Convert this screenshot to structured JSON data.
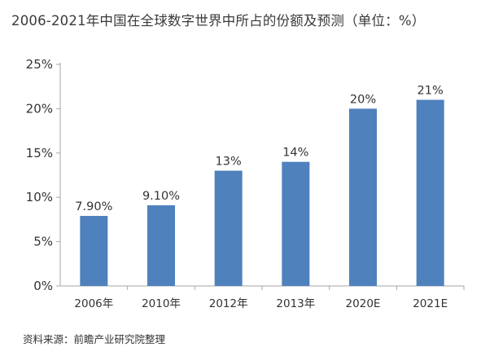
{
  "title": "2006-2021年中国在全球数字世界中所占的份额及预测（单位：%）",
  "source": "资料来源：前瞻产业研究院整理",
  "colors": {
    "bar": "#4f81bd",
    "axis": "#a6a6a6",
    "text": "#333333"
  },
  "chart_data": {
    "type": "bar",
    "categories": [
      "2006年",
      "2010年",
      "2012年",
      "2013年",
      "2020E",
      "2021E"
    ],
    "values": [
      7.9,
      9.1,
      13,
      14,
      20,
      21
    ],
    "data_labels": [
      "7.90%",
      "9.10%",
      "13%",
      "14%",
      "20%",
      "21%"
    ],
    "y_ticks": [
      0,
      5,
      10,
      15,
      20,
      25
    ],
    "y_tick_labels": [
      "0%",
      "5%",
      "10%",
      "15%",
      "20%",
      "25%"
    ],
    "ylim": [
      0,
      25
    ],
    "xlabel": "",
    "ylabel": "",
    "grid": false,
    "legend": "none"
  }
}
